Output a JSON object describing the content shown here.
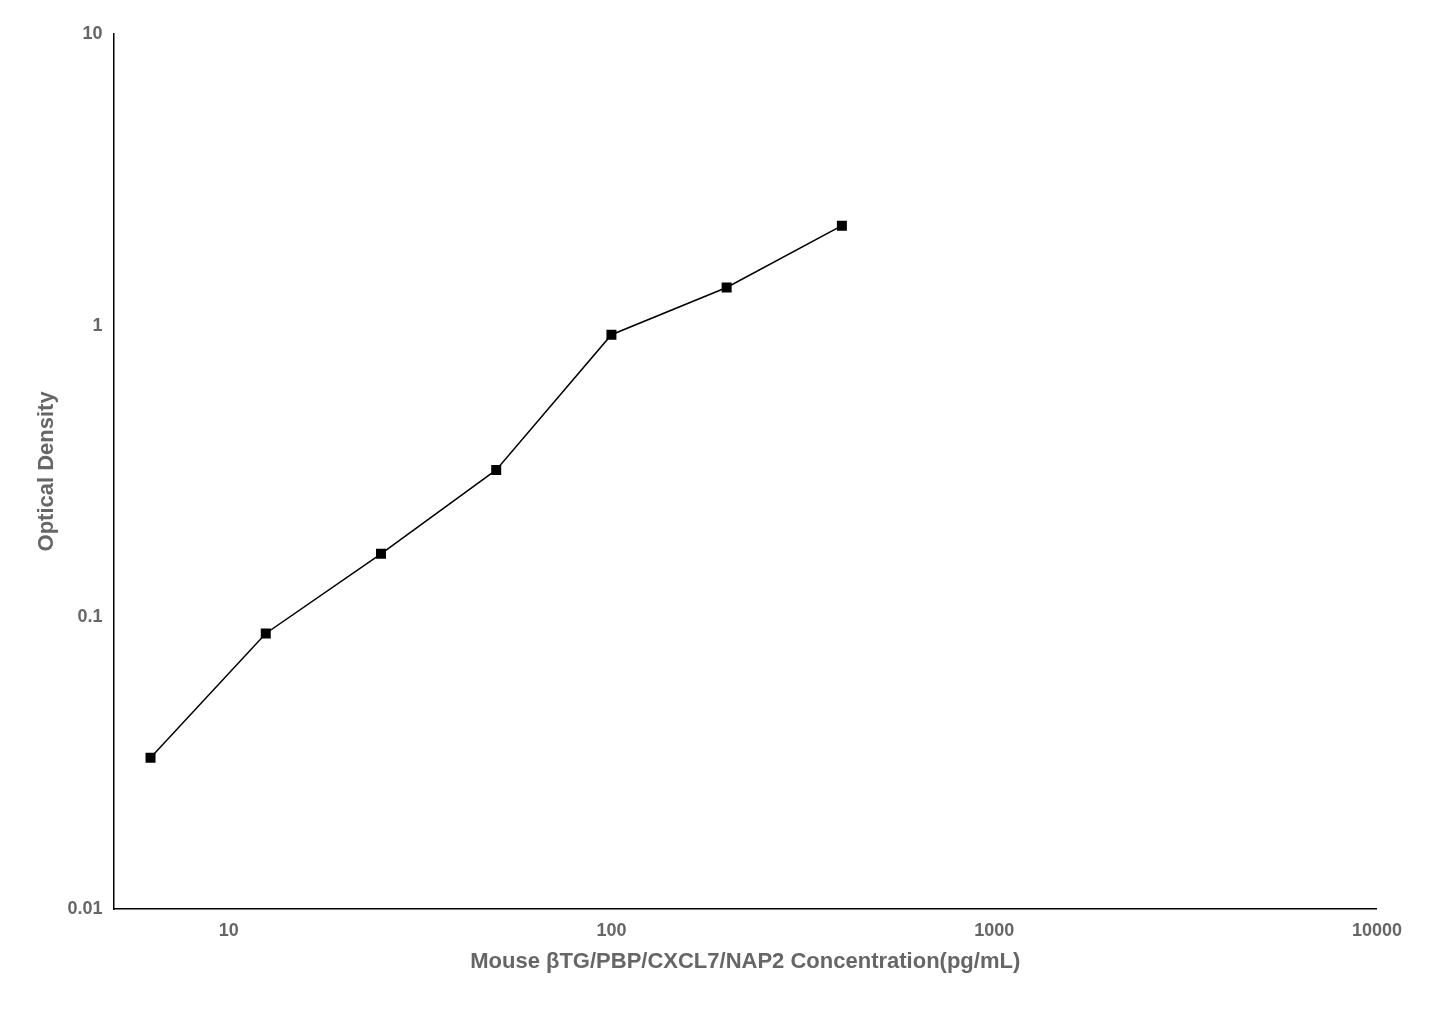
{
  "chart_data": {
    "type": "line",
    "x": [
      6.25,
      12.5,
      25,
      50,
      100,
      200,
      400
    ],
    "series": [
      {
        "color": "#000000",
        "marker": "square",
        "line_style": "solid",
        "values": [
          0.033,
          0.088,
          0.165,
          0.32,
          0.93,
          1.35,
          2.2
        ]
      }
    ],
    "xlabel": "Mouse βTG/PBP/CXCL7/NAP2 Concentration(pg/mL)",
    "ylabel": "Optical Density",
    "log": true,
    "xlim": [
      5,
      10000
    ],
    "ylim": [
      0.01,
      10
    ],
    "xticks": [
      10,
      100,
      1000,
      10000
    ],
    "yticks": [
      0.01,
      0.1,
      1,
      10
    ],
    "grid": false
  }
}
